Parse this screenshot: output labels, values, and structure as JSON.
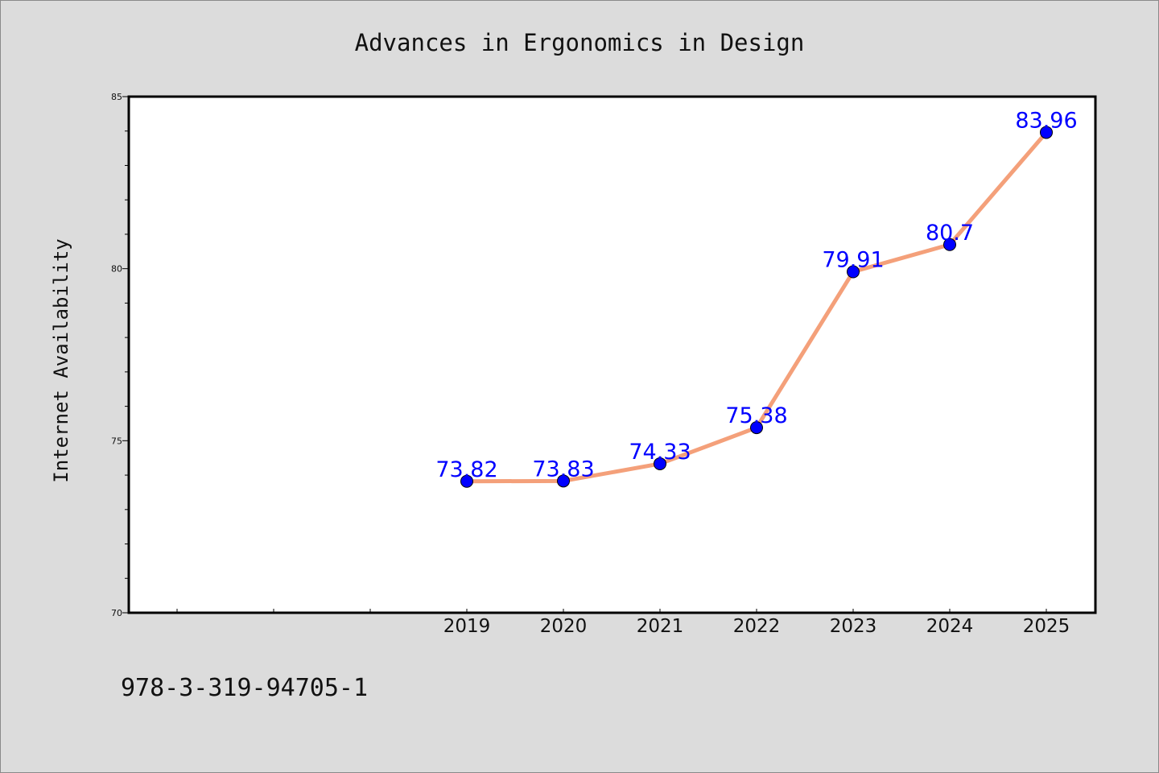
{
  "chart_data": {
    "type": "line",
    "title": "Advances in Ergonomics in Design",
    "ylabel": "Internet Availability",
    "xlabel": "",
    "categories": [
      "2019",
      "2020",
      "2021",
      "2022",
      "2023",
      "2024",
      "2025"
    ],
    "values": [
      73.82,
      73.83,
      74.33,
      75.38,
      79.91,
      80.7,
      83.96
    ],
    "data_labels": [
      "73.82",
      "73.83",
      "74.33",
      "75.38",
      "79.91",
      "80.7",
      "83.96"
    ],
    "ylim": [
      70,
      85
    ],
    "yticks": [
      "70",
      "75",
      "80",
      "85"
    ],
    "grid": false,
    "legend": "none",
    "line_color": "#f4a07a",
    "marker_color": "#0000ff",
    "label_color": "#0000ff"
  },
  "footer": {
    "isbn": "978-3-319-94705-1"
  },
  "colors": {
    "background": "#dcdcdc",
    "plot_background": "#ffffff"
  }
}
